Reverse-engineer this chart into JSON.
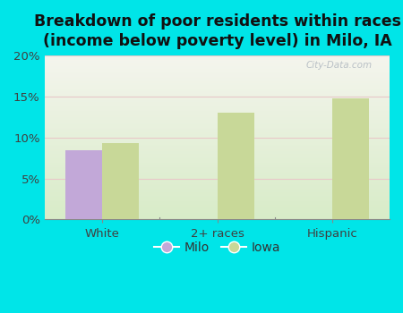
{
  "title": "Breakdown of poor residents within races\n(income below poverty level) in Milo, IA",
  "categories": [
    "White",
    "2+ races",
    "Hispanic"
  ],
  "milo_values": [
    8.5,
    0.0,
    0.0
  ],
  "iowa_values": [
    9.3,
    13.0,
    14.8
  ],
  "milo_color": "#c2a8d8",
  "iowa_color": "#c8d898",
  "background_outer": "#00e5e8",
  "background_inner_top": "#f8f8f0",
  "background_inner_bottom": "#d8ecc8",
  "ylim": [
    0,
    20
  ],
  "yticks": [
    0,
    5,
    10,
    15,
    20
  ],
  "ytick_labels": [
    "0%",
    "5%",
    "10%",
    "15%",
    "20%"
  ],
  "bar_width": 0.32,
  "legend_labels": [
    "Milo",
    "Iowa"
  ],
  "watermark": "City-Data.com",
  "title_fontsize": 12.5,
  "tick_fontsize": 9.5,
  "legend_fontsize": 10
}
